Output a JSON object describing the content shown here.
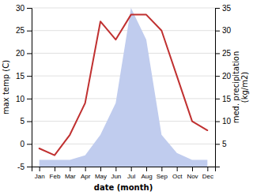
{
  "chart_data": {
    "type": "line",
    "xlabel": "date (month)",
    "ylabel": "max temp (C)",
    "y2label": "med. precipitation\n(kg/m2)",
    "categories": [
      "Jan",
      "Feb",
      "Mar",
      "Apr",
      "May",
      "Jun",
      "Jul",
      "Aug",
      "Sep",
      "Oct",
      "Nov",
      "Dec"
    ],
    "series": [
      {
        "type": "area",
        "axis": "y2",
        "color": "#c0ccee",
        "values": [
          1.5,
          1.5,
          1.5,
          2.5,
          7.0,
          14.0,
          35.0,
          28.0,
          7.0,
          3.0,
          1.5,
          1.5
        ]
      },
      {
        "type": "line",
        "color": "#c03030",
        "values": [
          -1.0,
          -2.5,
          2.0,
          9.0,
          27.0,
          23.0,
          28.5,
          28.5,
          25.0,
          15.0,
          5.0,
          3.0
        ]
      }
    ],
    "ylim": [
      -5,
      30
    ],
    "yticks": [
      -5,
      0,
      5,
      10,
      15,
      20,
      25,
      30
    ],
    "y2lim": [
      0,
      35
    ],
    "y2ticks": [
      5,
      10,
      15,
      20,
      25,
      30,
      35
    ],
    "grid": true
  }
}
